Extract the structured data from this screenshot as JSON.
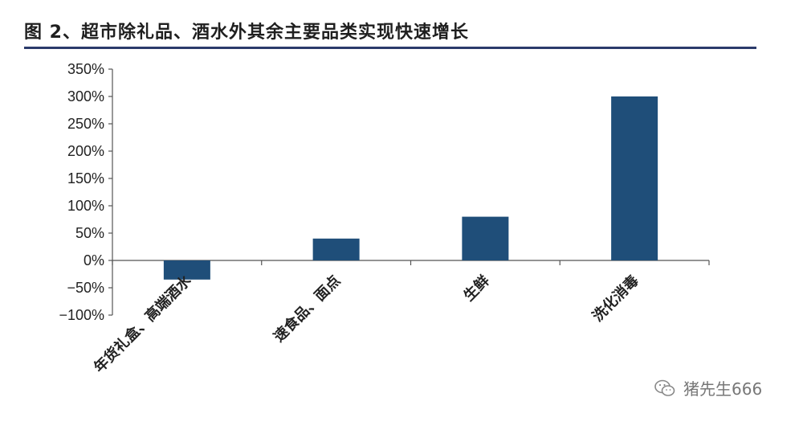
{
  "title": "图 2、超市除礼品、酒水外其余主要品类实现快速增长",
  "watermark": "猪先生666",
  "watermark_icon": "wechat-icon",
  "colors": {
    "bar": "#1f4e79",
    "title_rule": "#2b3b6b"
  },
  "chart_data": {
    "type": "bar",
    "categories": [
      "年货礼盒、高端酒水",
      "速食品、面点",
      "生鲜",
      "洗化消毒"
    ],
    "values": [
      -35,
      40,
      80,
      300
    ],
    "ylim": [
      -100,
      350
    ],
    "yticks": [
      -100,
      -50,
      0,
      50,
      100,
      150,
      200,
      250,
      300,
      350
    ],
    "ytick_format": "percent",
    "grid": false,
    "legend": "none"
  }
}
